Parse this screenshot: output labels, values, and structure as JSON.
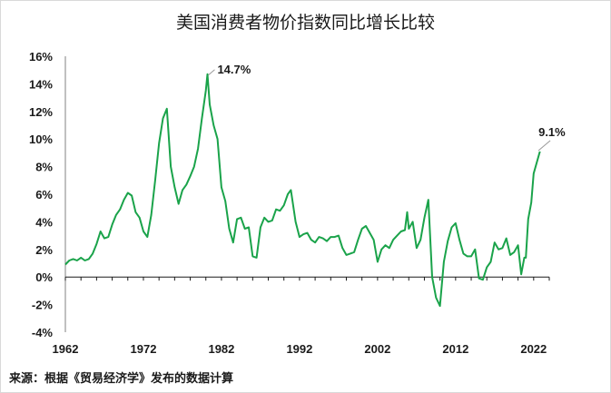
{
  "chart_data": {
    "type": "line",
    "title": "美国消费者物价指数同比增长比较",
    "xlabel": "",
    "ylabel": "",
    "ylim": [
      -4,
      16
    ],
    "xlim": [
      1962,
      2024
    ],
    "yticks": [
      "-4%",
      "-2%",
      "0%",
      "2%",
      "4%",
      "6%",
      "8%",
      "10%",
      "12%",
      "14%",
      "16%"
    ],
    "xticks": [
      "1962",
      "1972",
      "1982",
      "1992",
      "2002",
      "2012",
      "2022"
    ],
    "grid": false,
    "legend": "none",
    "series_color": "#1aa34a",
    "annotations": [
      {
        "label": "14.7%",
        "x": 1980.2,
        "y": 14.7
      },
      {
        "label": "9.1%",
        "x": 2022.5,
        "y": 9.1
      }
    ],
    "series": [
      {
        "x": [
          1962.0,
          1962.5,
          1963.0,
          1963.5,
          1964.0,
          1964.5,
          1965.0,
          1965.5,
          1966.0,
          1966.5,
          1967.0,
          1967.5,
          1968.0,
          1968.5,
          1969.0,
          1969.5,
          1970.0,
          1970.5,
          1971.0,
          1971.5,
          1972.0,
          1972.5,
          1973.0,
          1973.5,
          1974.0,
          1974.5,
          1975.0,
          1975.5,
          1976.0,
          1976.5,
          1977.0,
          1977.5,
          1978.0,
          1978.5,
          1979.0,
          1979.5,
          1980.0,
          1980.2,
          1980.5,
          1981.0,
          1981.5,
          1982.0,
          1982.5,
          1983.0,
          1983.5,
          1984.0,
          1984.5,
          1985.0,
          1985.5,
          1986.0,
          1986.5,
          1987.0,
          1987.5,
          1988.0,
          1988.5,
          1989.0,
          1989.5,
          1990.0,
          1990.5,
          1990.9,
          1991.5,
          1992.0,
          1992.5,
          1993.0,
          1993.5,
          1994.0,
          1994.5,
          1995.0,
          1995.5,
          1996.0,
          1996.5,
          1997.0,
          1997.5,
          1998.0,
          1998.5,
          1999.0,
          1999.5,
          2000.0,
          2000.5,
          2001.0,
          2001.5,
          2002.0,
          2002.5,
          2003.0,
          2003.5,
          2004.0,
          2004.5,
          2005.0,
          2005.5,
          2005.8,
          2006.0,
          2006.5,
          2007.0,
          2007.5,
          2008.0,
          2008.5,
          2009.0,
          2009.5,
          2010.0,
          2010.5,
          2011.0,
          2011.5,
          2012.0,
          2012.5,
          2013.0,
          2013.5,
          2014.0,
          2014.5,
          2015.0,
          2015.5,
          2016.0,
          2016.5,
          2017.0,
          2017.5,
          2018.0,
          2018.5,
          2019.0,
          2019.5,
          2020.0,
          2020.4,
          2020.8,
          2021.0,
          2021.3,
          2021.7,
          2022.0,
          2022.5,
          2022.8
        ],
        "values": [
          0.9,
          1.2,
          1.3,
          1.2,
          1.4,
          1.2,
          1.3,
          1.7,
          2.4,
          3.3,
          2.8,
          2.9,
          3.8,
          4.5,
          4.9,
          5.6,
          6.1,
          5.9,
          4.7,
          4.3,
          3.3,
          2.9,
          4.5,
          7.0,
          9.7,
          11.5,
          12.2,
          8.0,
          6.5,
          5.3,
          6.3,
          6.7,
          7.3,
          8.0,
          9.3,
          11.5,
          13.5,
          14.7,
          12.5,
          11.0,
          10.0,
          6.5,
          5.5,
          3.5,
          2.5,
          4.2,
          4.3,
          3.5,
          3.6,
          1.5,
          1.4,
          3.6,
          4.3,
          4.0,
          4.1,
          4.9,
          4.8,
          5.2,
          6.0,
          6.3,
          4.0,
          2.9,
          3.1,
          3.2,
          2.7,
          2.5,
          2.9,
          2.8,
          2.6,
          2.9,
          2.9,
          3.0,
          2.1,
          1.6,
          1.7,
          1.8,
          2.7,
          3.5,
          3.7,
          3.2,
          2.7,
          1.1,
          2.0,
          2.3,
          2.1,
          2.7,
          3.0,
          3.3,
          3.4,
          4.7,
          3.5,
          4.0,
          2.1,
          2.7,
          4.3,
          5.6,
          0.0,
          -1.5,
          -2.1,
          1.1,
          2.6,
          3.6,
          3.9,
          2.7,
          1.7,
          1.5,
          1.5,
          2.0,
          -0.1,
          -0.2,
          0.7,
          1.1,
          2.5,
          2.0,
          2.1,
          2.8,
          1.6,
          1.8,
          2.3,
          0.2,
          1.4,
          1.4,
          4.2,
          5.4,
          7.5,
          8.5,
          9.1
        ]
      }
    ]
  },
  "source": "来源：根据《贸易经济学》发布的数据计算"
}
